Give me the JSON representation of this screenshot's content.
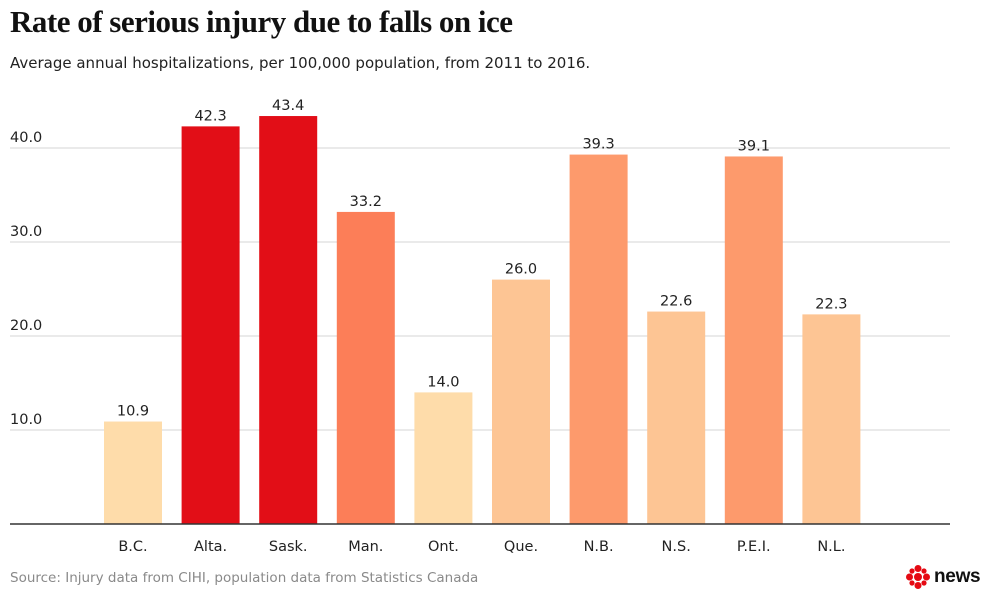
{
  "title": "Rate of serious injury due to falls on ice",
  "subtitle": "Average annual hospitalizations, per 100,000 population, from 2011 to 2016.",
  "source": "Source: Injury data from CIHI, population data from Statistics Canada",
  "brand": {
    "word": "news",
    "color": "#e50a13"
  },
  "chart_data": {
    "type": "bar",
    "title": "Rate of serious injury due to falls on ice",
    "subtitle": "Average annual hospitalizations, per 100,000 population, from 2011 to 2016.",
    "xlabel": "",
    "ylabel": "",
    "categories": [
      "B.C.",
      "Alta.",
      "Sask.",
      "Man.",
      "Ont.",
      "Que.",
      "N.B.",
      "N.S.",
      "P.E.I.",
      "N.L."
    ],
    "values": [
      10.9,
      42.3,
      43.4,
      33.2,
      14.0,
      26.0,
      39.3,
      22.6,
      39.1,
      22.3
    ],
    "value_labels": [
      "10.9",
      "42.3",
      "43.4",
      "33.2",
      "14.0",
      "26.0",
      "39.3",
      "22.6",
      "39.1",
      "22.3"
    ],
    "colors": [
      "#fedcaa",
      "#e20e17",
      "#e20e17",
      "#fc7e58",
      "#fedcaa",
      "#fdc594",
      "#fd9a6c",
      "#fdc594",
      "#fd9a6c",
      "#fdc594"
    ],
    "yticks": [
      10,
      20,
      30,
      40
    ],
    "ytick_labels": [
      "10.0",
      "20.0",
      "30.0",
      "40.0"
    ],
    "ylim": [
      0,
      50
    ],
    "grid": true,
    "legend": "none"
  }
}
